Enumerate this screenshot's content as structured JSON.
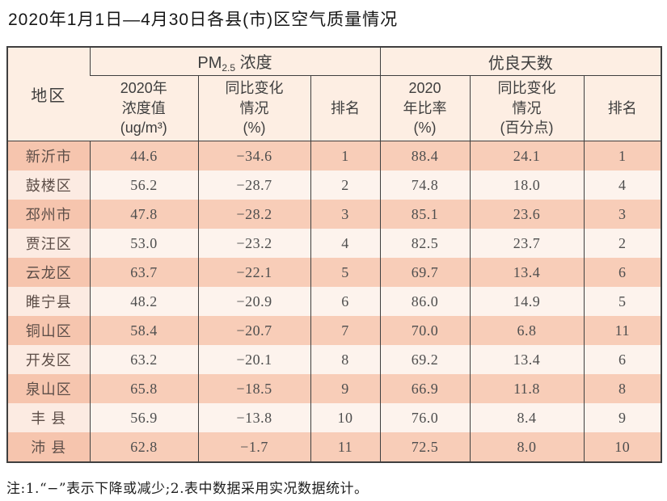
{
  "page": {
    "title": "2020年1月1日—4月30日各县(市)区空气质量情况",
    "note": "注:1.“−”表示下降或减少;2.表中数据采用实况数据统计。"
  },
  "table": {
    "group_headers": {
      "region": "地区",
      "pm25_prefix": "PM",
      "pm25_sub": "2.5",
      "pm25_suffix": " 浓度",
      "good_days": "优良天数"
    },
    "columns": {
      "pm25_value": "2020年\n浓度值\n(ug/m³)",
      "pm25_change": "同比变化\n情况\n(%)",
      "pm25_rank": "排名",
      "good_ratio": "2020\n年比率\n(%)",
      "good_change": "同比变化\n情况\n(百分点)",
      "good_rank": "排名"
    },
    "rows": [
      {
        "region": "新沂市",
        "pm25_value": "44.6",
        "pm25_change": "−34.6",
        "pm25_rank": "1",
        "good_ratio": "88.4",
        "good_change": "24.1",
        "good_rank": "1"
      },
      {
        "region": "鼓楼区",
        "pm25_value": "56.2",
        "pm25_change": "−28.7",
        "pm25_rank": "2",
        "good_ratio": "74.8",
        "good_change": "18.0",
        "good_rank": "4"
      },
      {
        "region": "邳州市",
        "pm25_value": "47.8",
        "pm25_change": "−28.2",
        "pm25_rank": "3",
        "good_ratio": "85.1",
        "good_change": "23.6",
        "good_rank": "3"
      },
      {
        "region": "贾汪区",
        "pm25_value": "53.0",
        "pm25_change": "−23.2",
        "pm25_rank": "4",
        "good_ratio": "82.5",
        "good_change": "23.7",
        "good_rank": "2"
      },
      {
        "region": "云龙区",
        "pm25_value": "63.7",
        "pm25_change": "−22.1",
        "pm25_rank": "5",
        "good_ratio": "69.7",
        "good_change": "13.4",
        "good_rank": "6"
      },
      {
        "region": "睢宁县",
        "pm25_value": "48.2",
        "pm25_change": "−20.9",
        "pm25_rank": "6",
        "good_ratio": "86.0",
        "good_change": "14.9",
        "good_rank": "5"
      },
      {
        "region": "铜山区",
        "pm25_value": "58.4",
        "pm25_change": "−20.7",
        "pm25_rank": "7",
        "good_ratio": "70.0",
        "good_change": "6.8",
        "good_rank": "11"
      },
      {
        "region": "开发区",
        "pm25_value": "63.2",
        "pm25_change": "−20.1",
        "pm25_rank": "8",
        "good_ratio": "69.2",
        "good_change": "13.4",
        "good_rank": "6"
      },
      {
        "region": "泉山区",
        "pm25_value": "65.8",
        "pm25_change": "−18.5",
        "pm25_rank": "9",
        "good_ratio": "66.9",
        "good_change": "11.8",
        "good_rank": "8"
      },
      {
        "region": "丰 县",
        "pm25_value": "56.9",
        "pm25_change": "−13.8",
        "pm25_rank": "10",
        "good_ratio": "76.0",
        "good_change": "8.4",
        "good_rank": "9"
      },
      {
        "region": "沛 县",
        "pm25_value": "62.8",
        "pm25_change": "−1.7",
        "pm25_rank": "11",
        "good_ratio": "72.5",
        "good_change": "8.0",
        "good_rank": "10"
      }
    ],
    "colors": {
      "stripe_salmon": "#f8cdb8",
      "stripe_light": "#fdf3ed",
      "header_bg": "#fdeee3",
      "border": "#3f3f3f"
    }
  }
}
